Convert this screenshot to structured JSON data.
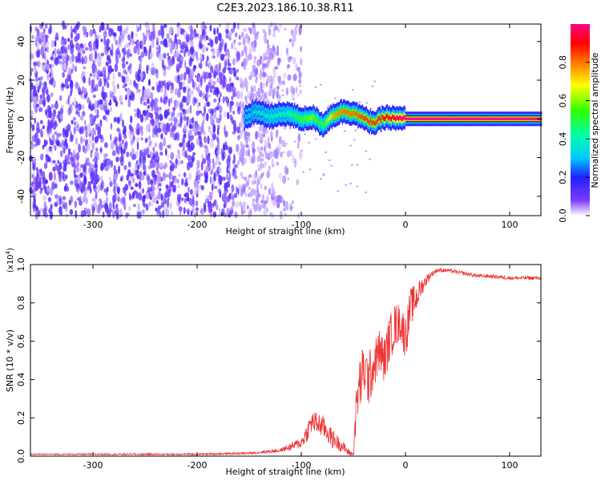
{
  "title": "C2E3.2023.186.10.38.R11",
  "chart_data": [
    {
      "type": "heatmap",
      "xlabel": "Height of straight line (km)",
      "ylabel": "Frequency (Hz)",
      "xlim": [
        -360,
        130
      ],
      "ylim": [
        -50,
        49
      ],
      "xticks": [
        "-300",
        "-200",
        "-100",
        "0",
        "100"
      ],
      "yticks": [
        "-40",
        "-20",
        "0",
        "20",
        "40"
      ],
      "xtick_values": [
        -300,
        -200,
        -100,
        0,
        100
      ],
      "ytick_values": [
        -40,
        -20,
        0,
        20,
        40
      ],
      "colorbar": {
        "label": "Normalized spectral amplitude",
        "ticks": [
          "0.0",
          "0.2",
          "0.4",
          "0.6",
          "0.8"
        ],
        "tick_values": [
          0.0,
          0.2,
          0.4,
          0.6,
          0.8
        ],
        "range": [
          0,
          1
        ]
      },
      "ridge": {
        "description_points_x": [
          -155,
          -145,
          -130,
          -115,
          -100,
          -90,
          -80,
          -70,
          -60,
          -50,
          -40,
          -30,
          -20,
          -10,
          0,
          130
        ],
        "description_points_y": [
          0,
          4,
          1,
          3,
          0,
          1,
          -3,
          2,
          4,
          3,
          0,
          -2,
          1,
          0,
          0,
          0
        ],
        "amplitude": [
          0.3,
          0.35,
          0.4,
          0.4,
          0.55,
          0.6,
          0.5,
          0.75,
          0.8,
          0.8,
          0.85,
          0.85,
          0.9,
          0.95,
          1.0,
          1.0
        ]
      },
      "noise_region_x": [
        -360,
        -120
      ],
      "grid": false
    },
    {
      "type": "line",
      "xlabel": "Height of straight line (km)",
      "ylabel": "SNR (10 * v/v)",
      "yscale_label": "(x10",
      "yscale_exp": "4",
      "yscale_close": ")",
      "xlim": [
        -360,
        130
      ],
      "ylim": [
        0,
        1.0
      ],
      "xticks": [
        "-300",
        "-200",
        "-100",
        "0",
        "100"
      ],
      "yticks": [
        "0.0",
        "0.2",
        "0.4",
        "0.6",
        "0.8",
        "1.0"
      ],
      "xtick_values": [
        -300,
        -200,
        -100,
        0,
        100
      ],
      "ytick_values": [
        0.0,
        0.2,
        0.4,
        0.6,
        0.8,
        1.0
      ],
      "color": "#ee3333",
      "series": [
        {
          "x": [
            -360,
            -300,
            -200,
            -150,
            -120,
            -110,
            -100,
            -95,
            -90,
            -80,
            -70,
            -60,
            -55,
            -50,
            -48,
            -45,
            -40,
            -35,
            -30,
            -25,
            -20,
            -15,
            -10,
            -5,
            0,
            5,
            10,
            15,
            20,
            25,
            30,
            40,
            50,
            60,
            70,
            80,
            90,
            100,
            110,
            120,
            130
          ],
          "y": [
            0.01,
            0.01,
            0.01,
            0.015,
            0.03,
            0.05,
            0.07,
            0.12,
            0.18,
            0.16,
            0.09,
            0.05,
            0.02,
            0.01,
            0.2,
            0.35,
            0.45,
            0.4,
            0.48,
            0.55,
            0.5,
            0.62,
            0.68,
            0.7,
            0.62,
            0.78,
            0.82,
            0.88,
            0.92,
            0.95,
            0.97,
            0.97,
            0.96,
            0.95,
            0.94,
            0.94,
            0.935,
            0.93,
            0.93,
            0.93,
            0.93
          ],
          "jitter": [
            0.003,
            0.004,
            0.005,
            0.006,
            0.01,
            0.02,
            0.03,
            0.05,
            0.06,
            0.06,
            0.05,
            0.03,
            0.02,
            0.01,
            0.12,
            0.15,
            0.14,
            0.15,
            0.12,
            0.12,
            0.12,
            0.12,
            0.12,
            0.1,
            0.12,
            0.1,
            0.08,
            0.05,
            0.03,
            0.015,
            0.012,
            0.01,
            0.01,
            0.01,
            0.01,
            0.01,
            0.01,
            0.01,
            0.01,
            0.01,
            0.01
          ]
        }
      ]
    }
  ]
}
